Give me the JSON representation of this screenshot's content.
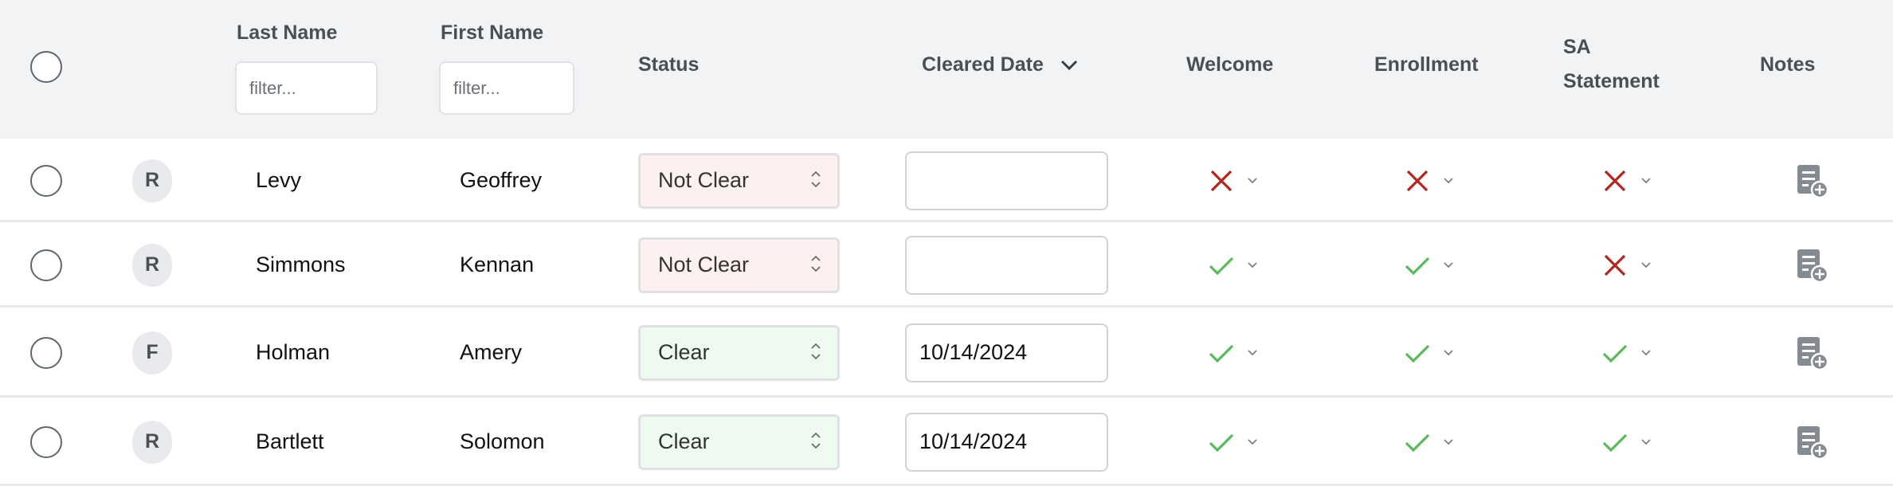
{
  "header": {
    "columns": {
      "last_name": "Last Name",
      "first_name": "First Name",
      "status": "Status",
      "cleared_date": "Cleared Date",
      "welcome": "Welcome",
      "enrollment": "Enrollment",
      "sa_line1": "SA",
      "sa_line2": "Statement",
      "notes": "Notes"
    },
    "filter_placeholder": "filter...",
    "sort_icon": "chevron-down-icon"
  },
  "colors": {
    "header_bg": "#f2f3f5",
    "check": "#5cb85c",
    "cross": "#b3261e",
    "not_clear_bg": "#fcf0f0",
    "clear_bg": "#eefaf0"
  },
  "rows": [
    {
      "type": "R",
      "last": "Levy",
      "first": "Geoffrey",
      "status": "Not Clear",
      "date": "",
      "welcome": "no",
      "enrollment": "no",
      "sa": "no"
    },
    {
      "type": "R",
      "last": "Simmons",
      "first": "Kennan",
      "status": "Not Clear",
      "date": "",
      "welcome": "yes",
      "enrollment": "yes",
      "sa": "no"
    },
    {
      "type": "F",
      "last": "Holman",
      "first": "Amery",
      "status": "Clear",
      "date": "10/14/2024",
      "welcome": "yes",
      "enrollment": "yes",
      "sa": "yes"
    },
    {
      "type": "R",
      "last": "Bartlett",
      "first": "Solomon",
      "status": "Clear",
      "date": "10/14/2024",
      "welcome": "yes",
      "enrollment": "yes",
      "sa": "yes"
    }
  ]
}
